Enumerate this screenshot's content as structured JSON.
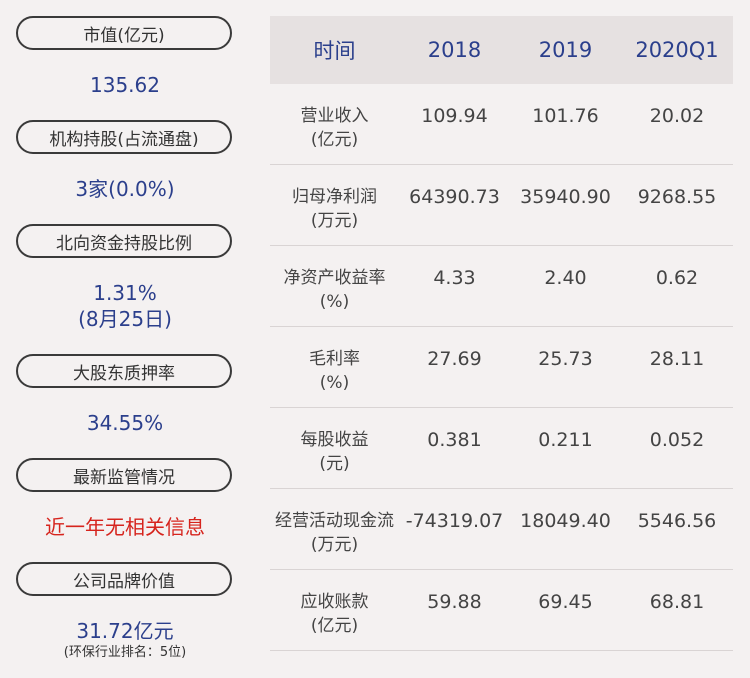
{
  "left_panel": [
    {
      "label": "市值(亿元)",
      "value": "135.62"
    },
    {
      "label": "机构持股(占流通盘)",
      "value": "3家(0.0%)"
    },
    {
      "label": "北向资金持股比例",
      "value": "1.31%",
      "value2": "(8月25日)"
    },
    {
      "label": "大股东质押率",
      "value": "34.55%"
    },
    {
      "label": "最新监管情况",
      "value": "近一年无相关信息"
    },
    {
      "label": "公司品牌价值",
      "value": "31.72亿元",
      "note": "(环保行业排名：5位)"
    }
  ],
  "table": {
    "headers": [
      "时间",
      "2018",
      "2019",
      "2020Q1"
    ],
    "rows": [
      {
        "label": "营业收入",
        "unit": "(亿元)",
        "values": [
          "109.94",
          "101.76",
          "20.02"
        ]
      },
      {
        "label": "归母净利润",
        "unit": "(万元)",
        "values": [
          "64390.73",
          "35940.90",
          "9268.55"
        ]
      },
      {
        "label": "净资产收益率",
        "unit": "(%)",
        "values": [
          "4.33",
          "2.40",
          "0.62"
        ]
      },
      {
        "label": "毛利率",
        "unit": "(%)",
        "values": [
          "27.69",
          "25.73",
          "28.11"
        ]
      },
      {
        "label": "每股收益",
        "unit": "(元)",
        "values": [
          "0.381",
          "0.211",
          "0.052"
        ]
      },
      {
        "label": "经营活动现金流",
        "unit": "(万元)",
        "values": [
          "-74319.07",
          "18049.40",
          "5546.56"
        ]
      },
      {
        "label": "应收账款",
        "unit": "(亿元)",
        "values": [
          "59.88",
          "69.45",
          "68.81"
        ]
      }
    ]
  },
  "colors": {
    "value_blue": "#2b3f8c",
    "alert_red": "#d6241d",
    "background": "#f4f1f1",
    "header_bg": "#e6e1e1"
  }
}
